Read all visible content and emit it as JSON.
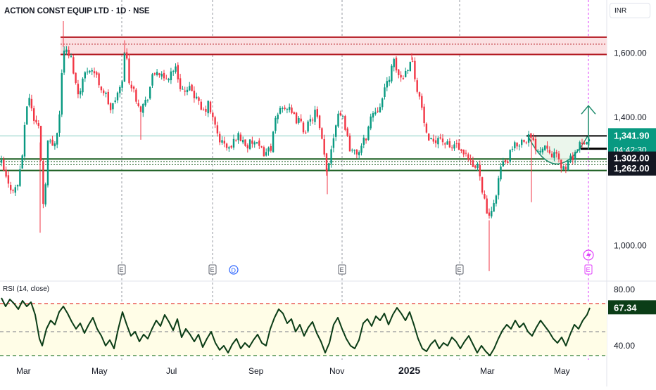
{
  "chart_data": [
    {
      "type": "candlestick",
      "title": "ACTION CONST EQUIP LTD · 1D · NSE",
      "currency": "INR",
      "y_range": [
        900,
        1700
      ],
      "y_ticks": [
        1600,
        1400,
        1000
      ],
      "y_tick_labels": [
        "1,600.00",
        "1,400.00",
        "1,000.00"
      ],
      "x_ticks": [
        "Mar",
        "May",
        "Jul",
        "Sep",
        "Nov",
        "2025",
        "Mar",
        "May"
      ],
      "price_path": [
        [
          0,
          1255
        ],
        [
          10,
          1185
        ],
        [
          22,
          1175
        ],
        [
          30,
          1290
        ],
        [
          38,
          1480
        ],
        [
          46,
          1395
        ],
        [
          54,
          1365
        ],
        [
          60,
          1105
        ],
        [
          66,
          1325
        ],
        [
          74,
          1310
        ],
        [
          82,
          1390
        ],
        [
          88,
          1620
        ],
        [
          94,
          1595
        ],
        [
          100,
          1580
        ],
        [
          108,
          1470
        ],
        [
          116,
          1520
        ],
        [
          124,
          1560
        ],
        [
          132,
          1540
        ],
        [
          140,
          1500
        ],
        [
          148,
          1470
        ],
        [
          156,
          1420
        ],
        [
          164,
          1470
        ],
        [
          170,
          1490
        ],
        [
          176,
          1620
        ],
        [
          182,
          1510
        ],
        [
          190,
          1470
        ],
        [
          198,
          1430
        ],
        [
          206,
          1450
        ],
        [
          214,
          1520
        ],
        [
          222,
          1550
        ],
        [
          230,
          1510
        ],
        [
          238,
          1530
        ],
        [
          246,
          1560
        ],
        [
          254,
          1500
        ],
        [
          262,
          1470
        ],
        [
          270,
          1490
        ],
        [
          278,
          1450
        ],
        [
          286,
          1410
        ],
        [
          294,
          1440
        ],
        [
          302,
          1380
        ],
        [
          310,
          1330
        ],
        [
          318,
          1310
        ],
        [
          326,
          1300
        ],
        [
          334,
          1345
        ],
        [
          342,
          1330
        ],
        [
          350,
          1310
        ],
        [
          358,
          1325
        ],
        [
          366,
          1300
        ],
        [
          374,
          1290
        ],
        [
          382,
          1300
        ],
        [
          390,
          1390
        ],
        [
          398,
          1440
        ],
        [
          406,
          1430
        ],
        [
          414,
          1400
        ],
        [
          422,
          1390
        ],
        [
          430,
          1360
        ],
        [
          438,
          1380
        ],
        [
          446,
          1420
        ],
        [
          454,
          1340
        ],
        [
          462,
          1230
        ],
        [
          470,
          1320
        ],
        [
          478,
          1420
        ],
        [
          486,
          1400
        ],
        [
          494,
          1310
        ],
        [
          502,
          1285
        ],
        [
          510,
          1300
        ],
        [
          518,
          1340
        ],
        [
          526,
          1410
        ],
        [
          534,
          1430
        ],
        [
          542,
          1460
        ],
        [
          550,
          1525
        ],
        [
          558,
          1570
        ],
        [
          566,
          1520
        ],
        [
          574,
          1540
        ],
        [
          582,
          1590
        ],
        [
          590,
          1500
        ],
        [
          598,
          1420
        ],
        [
          606,
          1310
        ],
        [
          614,
          1330
        ],
        [
          622,
          1340
        ],
        [
          630,
          1320
        ],
        [
          638,
          1300
        ],
        [
          646,
          1320
        ],
        [
          654,
          1280
        ],
        [
          662,
          1270
        ],
        [
          670,
          1240
        ],
        [
          678,
          1250
        ],
        [
          686,
          1140
        ],
        [
          694,
          1070
        ],
        [
          702,
          1160
        ],
        [
          710,
          1250
        ],
        [
          718,
          1260
        ],
        [
          726,
          1300
        ],
        [
          734,
          1320
        ],
        [
          742,
          1330
        ],
        [
          750,
          1340
        ],
        [
          758,
          1310
        ],
        [
          766,
          1300
        ],
        [
          774,
          1320
        ],
        [
          782,
          1290
        ],
        [
          790,
          1270
        ],
        [
          798,
          1240
        ],
        [
          806,
          1255
        ],
        [
          814,
          1290
        ],
        [
          822,
          1310
        ],
        [
          830,
          1310
        ],
        [
          836,
          1345
        ]
      ],
      "resistance_zone": [
        1596,
        1650
      ],
      "resistance_line": 1628,
      "support_lines": [
        1270,
        1262,
        1252,
        1234
      ],
      "annotation_levels": [
        1342,
        1302,
        1262
      ],
      "current_price": 1341.9,
      "current_price_label": "1,341.90",
      "countdown": "04:42:30",
      "level_labels": [
        "1,302.00",
        "1,262.00"
      ],
      "event_markers": [
        "E",
        "E",
        "D",
        "E",
        "E",
        "E"
      ],
      "colors": {
        "up": "#089981",
        "down": "#f23645",
        "resistance": "#b2151d",
        "resistance_fill": "#fbe0e2",
        "support": "#1b5e20",
        "cup_fill": "#e8f5e9",
        "label_bg": "#131722"
      }
    },
    {
      "type": "line",
      "title": "RSI (14, close)",
      "y_range": [
        30,
        85
      ],
      "y_ticks": [
        80,
        40
      ],
      "y_tick_labels": [
        "80.00",
        "40.00"
      ],
      "band": [
        33,
        70
      ],
      "midline": 50,
      "current_value": 67.34,
      "current_value_label": "67.34",
      "rsi_path": [
        [
          0,
          74
        ],
        [
          6,
          68
        ],
        [
          12,
          73
        ],
        [
          18,
          70
        ],
        [
          24,
          66
        ],
        [
          30,
          72
        ],
        [
          36,
          68
        ],
        [
          42,
          71
        ],
        [
          48,
          62
        ],
        [
          54,
          45
        ],
        [
          58,
          40
        ],
        [
          64,
          52
        ],
        [
          70,
          58
        ],
        [
          76,
          55
        ],
        [
          82,
          64
        ],
        [
          88,
          68
        ],
        [
          94,
          63
        ],
        [
          100,
          57
        ],
        [
          106,
          52
        ],
        [
          112,
          56
        ],
        [
          118,
          49
        ],
        [
          124,
          55
        ],
        [
          130,
          60
        ],
        [
          136,
          52
        ],
        [
          142,
          47
        ],
        [
          148,
          40
        ],
        [
          154,
          44
        ],
        [
          160,
          38
        ],
        [
          166,
          52
        ],
        [
          172,
          64
        ],
        [
          178,
          55
        ],
        [
          184,
          47
        ],
        [
          190,
          50
        ],
        [
          196,
          43
        ],
        [
          202,
          48
        ],
        [
          208,
          45
        ],
        [
          214,
          52
        ],
        [
          220,
          58
        ],
        [
          226,
          54
        ],
        [
          232,
          62
        ],
        [
          238,
          57
        ],
        [
          244,
          51
        ],
        [
          250,
          59
        ],
        [
          256,
          46
        ],
        [
          262,
          52
        ],
        [
          268,
          48
        ],
        [
          274,
          43
        ],
        [
          280,
          48
        ],
        [
          286,
          39
        ],
        [
          292,
          45
        ],
        [
          298,
          50
        ],
        [
          304,
          42
        ],
        [
          310,
          37
        ],
        [
          316,
          40
        ],
        [
          322,
          35
        ],
        [
          328,
          41
        ],
        [
          334,
          45
        ],
        [
          340,
          38
        ],
        [
          346,
          42
        ],
        [
          352,
          39
        ],
        [
          358,
          44
        ],
        [
          364,
          48
        ],
        [
          370,
          42
        ],
        [
          376,
          40
        ],
        [
          382,
          52
        ],
        [
          388,
          60
        ],
        [
          394,
          66
        ],
        [
          400,
          63
        ],
        [
          406,
          56
        ],
        [
          412,
          59
        ],
        [
          418,
          50
        ],
        [
          424,
          55
        ],
        [
          430,
          47
        ],
        [
          436,
          53
        ],
        [
          442,
          57
        ],
        [
          448,
          49
        ],
        [
          454,
          43
        ],
        [
          460,
          35
        ],
        [
          466,
          42
        ],
        [
          472,
          55
        ],
        [
          478,
          60
        ],
        [
          484,
          52
        ],
        [
          490,
          45
        ],
        [
          496,
          40
        ],
        [
          502,
          38
        ],
        [
          508,
          44
        ],
        [
          514,
          56
        ],
        [
          520,
          59
        ],
        [
          526,
          54
        ],
        [
          532,
          61
        ],
        [
          538,
          58
        ],
        [
          544,
          63
        ],
        [
          550,
          55
        ],
        [
          556,
          62
        ],
        [
          562,
          67
        ],
        [
          568,
          63
        ],
        [
          574,
          58
        ],
        [
          580,
          64
        ],
        [
          586,
          55
        ],
        [
          592,
          45
        ],
        [
          598,
          38
        ],
        [
          604,
          36
        ],
        [
          610,
          41
        ],
        [
          616,
          44
        ],
        [
          622,
          38
        ],
        [
          628,
          42
        ],
        [
          634,
          40
        ],
        [
          640,
          46
        ],
        [
          646,
          43
        ],
        [
          652,
          38
        ],
        [
          658,
          43
        ],
        [
          664,
          47
        ],
        [
          670,
          41
        ],
        [
          676,
          35
        ],
        [
          682,
          40
        ],
        [
          688,
          36
        ],
        [
          694,
          33
        ],
        [
          700,
          38
        ],
        [
          706,
          45
        ],
        [
          712,
          51
        ],
        [
          718,
          55
        ],
        [
          724,
          52
        ],
        [
          730,
          58
        ],
        [
          736,
          53
        ],
        [
          742,
          56
        ],
        [
          748,
          50
        ],
        [
          754,
          47
        ],
        [
          760,
          53
        ],
        [
          766,
          58
        ],
        [
          772,
          54
        ],
        [
          778,
          50
        ],
        [
          784,
          45
        ],
        [
          790,
          42
        ],
        [
          796,
          46
        ],
        [
          802,
          40
        ],
        [
          808,
          48
        ],
        [
          814,
          55
        ],
        [
          820,
          52
        ],
        [
          826,
          58
        ],
        [
          832,
          62
        ],
        [
          836,
          67
        ]
      ],
      "colors": {
        "line": "#0b3d17",
        "band_fill": "#fffde7",
        "overbought": "#e53935",
        "oversold": "#2e7d32"
      }
    }
  ]
}
